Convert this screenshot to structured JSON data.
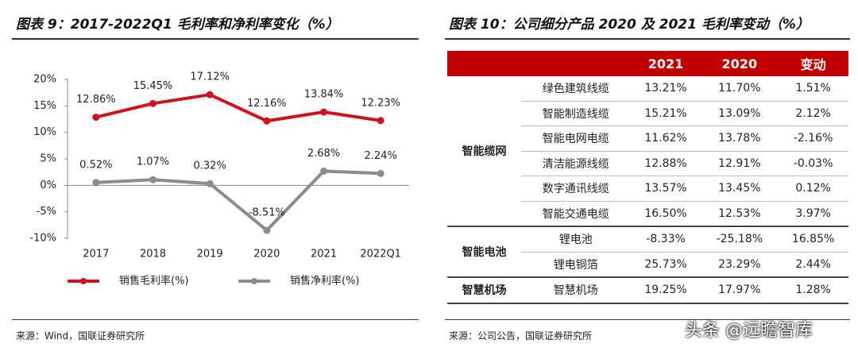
{
  "chart_data": {
    "type": "line",
    "title": "图表 9：2017-2022Q1 毛利率和净利率变化（%）",
    "categories": [
      "2017",
      "2018",
      "2019",
      "2020",
      "2021",
      "2022Q1"
    ],
    "series": [
      {
        "name": "销售毛利率(%)",
        "color": "#d0121b",
        "values": [
          12.86,
          15.45,
          17.12,
          12.16,
          13.84,
          12.23
        ],
        "value_labels": [
          "12.86%",
          "15.45%",
          "17.12%",
          "12.16%",
          "13.84%",
          "12.23%"
        ]
      },
      {
        "name": "销售净利率(%)",
        "color": "#8c8c8c",
        "values": [
          0.52,
          1.07,
          0.32,
          -8.51,
          2.68,
          2.24
        ],
        "value_labels": [
          "0.52%",
          "1.07%",
          "0.32%",
          "-8.51%",
          "2.68%",
          "2.24%"
        ]
      }
    ],
    "ylim": [
      -10,
      20
    ],
    "yticks": [
      {
        "value": -10,
        "label": "-10%"
      },
      {
        "value": -5,
        "label": "-5%"
      },
      {
        "value": 0,
        "label": "0%"
      },
      {
        "value": 5,
        "label": "5%"
      },
      {
        "value": 10,
        "label": "10%"
      },
      {
        "value": 15,
        "label": "15%"
      },
      {
        "value": 20,
        "label": "20%"
      }
    ],
    "source": "来源：Wind，国联证券研究所"
  },
  "table": {
    "title": "图表 10：公司细分产品 2020 及 2021 毛利率变动（%）",
    "header": [
      "2021",
      "2020",
      "变动"
    ],
    "groups": [
      {
        "name": "智能缆网",
        "rows": [
          [
            "绿色建筑线缆",
            "13.21%",
            "11.70%",
            "1.51%"
          ],
          [
            "智能制造线缆",
            "15.21%",
            "13.09%",
            "2.12%"
          ],
          [
            "智能电网电缆",
            "11.62%",
            "13.78%",
            "-2.16%"
          ],
          [
            "清洁能源线缆",
            "12.88%",
            "12.91%",
            "-0.03%"
          ],
          [
            "数字通讯线缆",
            "13.57%",
            "13.45%",
            "0.12%"
          ],
          [
            "智能交通电缆",
            "16.50%",
            "12.53%",
            "3.97%"
          ]
        ]
      },
      {
        "name": "智能电池",
        "rows": [
          [
            "锂电池",
            "-8.33%",
            "-25.18%",
            "16.85%"
          ],
          [
            "锂电铜箔",
            "25.73%",
            "23.29%",
            "2.44%"
          ]
        ]
      },
      {
        "name": "智慧机场",
        "rows": [
          [
            "智慧机场",
            "19.25%",
            "17.97%",
            "1.28%"
          ]
        ]
      }
    ],
    "source": "来源：公司公告，国联证券研究所"
  },
  "watermark": "头条 @远瞻智库"
}
